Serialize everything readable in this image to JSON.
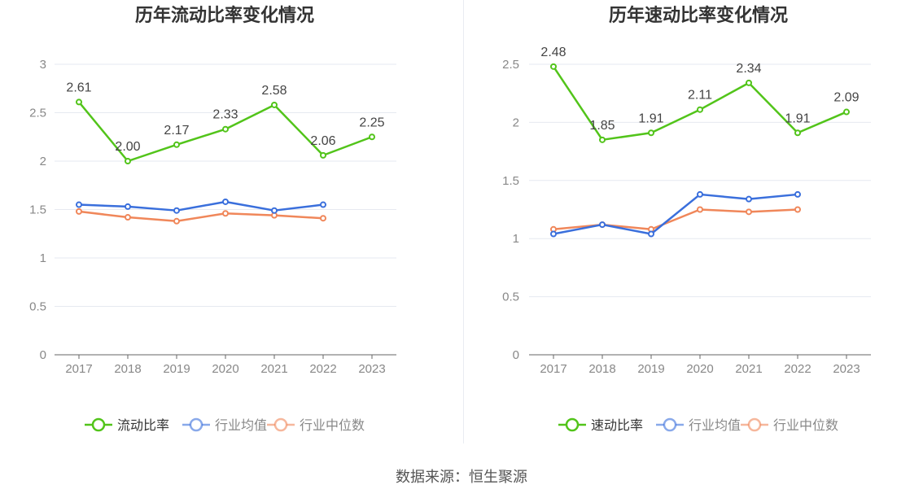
{
  "source": "数据来源：恒生聚源",
  "chart_data": [
    {
      "type": "line",
      "title": "历年流动比率变化情况",
      "categories": [
        "2017",
        "2018",
        "2019",
        "2020",
        "2021",
        "2022",
        "2023"
      ],
      "ylim": [
        0,
        3
      ],
      "yticks": [
        "0",
        "0.5",
        "1",
        "1.5",
        "2",
        "2.5",
        "3"
      ],
      "grid": true,
      "legend_position": "bottom",
      "series": [
        {
          "name": "流动比率",
          "color": "#52c41a",
          "values": [
            2.61,
            2.0,
            2.17,
            2.33,
            2.58,
            2.06,
            2.25
          ],
          "labels": [
            "2.61",
            "2.00",
            "2.17",
            "2.33",
            "2.58",
            "2.06",
            "2.25"
          ]
        },
        {
          "name": "行业均值",
          "color": "#3a6fdc",
          "values": [
            1.55,
            1.53,
            1.49,
            1.58,
            1.49,
            1.55,
            null
          ]
        },
        {
          "name": "行业中位数",
          "color": "#f0875a",
          "values": [
            1.48,
            1.42,
            1.38,
            1.46,
            1.44,
            1.41,
            null
          ]
        }
      ]
    },
    {
      "type": "line",
      "title": "历年速动比率变化情况",
      "categories": [
        "2017",
        "2018",
        "2019",
        "2020",
        "2021",
        "2022",
        "2023"
      ],
      "ylim": [
        0,
        2.5
      ],
      "yticks": [
        "0",
        "0.5",
        "1",
        "1.5",
        "2",
        "2.5"
      ],
      "grid": true,
      "legend_position": "bottom",
      "series": [
        {
          "name": "速动比率",
          "color": "#52c41a",
          "values": [
            2.48,
            1.85,
            1.91,
            2.11,
            2.34,
            1.91,
            2.09
          ],
          "labels": [
            "2.48",
            "1.85",
            "1.91",
            "2.11",
            "2.34",
            "1.91",
            "2.09"
          ]
        },
        {
          "name": "行业均值",
          "color": "#3a6fdc",
          "values": [
            1.04,
            1.12,
            1.04,
            1.38,
            1.34,
            1.38,
            null
          ]
        },
        {
          "name": "行业中位数",
          "color": "#f0875a",
          "values": [
            1.08,
            1.12,
            1.08,
            1.25,
            1.23,
            1.25,
            null
          ]
        }
      ]
    }
  ]
}
